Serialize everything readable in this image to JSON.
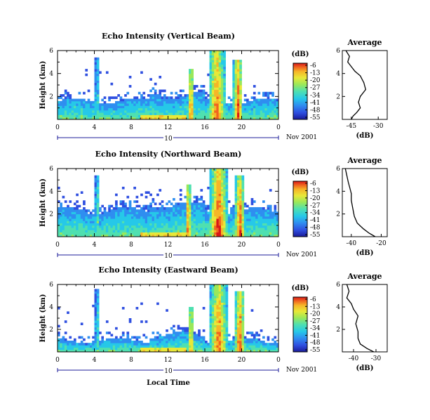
{
  "figure": {
    "xlabel": "Local Time",
    "date_label": "Nov 2001",
    "day_label": "10",
    "colorbar_unit": "(dB)",
    "colorbar_ticks": [
      "-6",
      "-13",
      "-20",
      "-27",
      "-34",
      "-41",
      "-48",
      "-55"
    ],
    "colors": {
      "scale": [
        "#1b1b9a",
        "#2f4fe0",
        "#2f8ef0",
        "#26c8e8",
        "#4fe0b0",
        "#9ae85a",
        "#e8e838",
        "#f6b628",
        "#f06420",
        "#d81818"
      ]
    }
  },
  "chart_data": [
    {
      "type": "heatmap",
      "title": "Echo Intensity (Vertical Beam)",
      "ylabel": "Height (km)",
      "x_ticks": [
        "0",
        "4",
        "8",
        "12",
        "16",
        "20",
        "0"
      ],
      "y_ticks": [
        "6",
        "4",
        "2"
      ],
      "xlim": [
        0,
        24
      ],
      "ylim": [
        0,
        6
      ],
      "profile": {
        "title": "Average",
        "xlabel": "(dB)",
        "x_ticks": [
          "-45",
          "-30"
        ],
        "y_ticks": [
          "6",
          "4",
          "2"
        ],
        "xlim": [
          -50,
          -25
        ],
        "x": [
          -45,
          -44,
          -42,
          -40,
          -41,
          -40,
          -37,
          -38,
          -40,
          -43,
          -45,
          -47,
          -46,
          -48
        ],
        "y": [
          0.0,
          0.3,
          0.6,
          1.0,
          1.5,
          2.0,
          2.6,
          3.2,
          3.8,
          4.2,
          4.6,
          5.0,
          5.5,
          6.0
        ]
      }
    },
    {
      "type": "heatmap",
      "title": "Echo Intensity (Northward Beam)",
      "ylabel": "Height (km)",
      "x_ticks": [
        "0",
        "4",
        "8",
        "12",
        "16",
        "20",
        "0"
      ],
      "y_ticks": [
        "6",
        "4",
        "2"
      ],
      "xlim": [
        0,
        24
      ],
      "ylim": [
        0,
        6
      ],
      "profile": {
        "title": "Average",
        "xlabel": "(dB)",
        "x_ticks": [
          "-40",
          "-20"
        ],
        "y_ticks": [
          "6",
          "4",
          "2"
        ],
        "xlim": [
          -46,
          -16
        ],
        "x": [
          -24,
          -28,
          -32,
          -36,
          -38,
          -39,
          -40,
          -40,
          -41,
          -42,
          -43,
          -44
        ],
        "y": [
          0.0,
          0.3,
          0.7,
          1.2,
          1.8,
          2.5,
          3.2,
          3.8,
          4.3,
          4.8,
          5.4,
          6.0
        ]
      }
    },
    {
      "type": "heatmap",
      "title": "Echo Intensity (Eastward Beam)",
      "ylabel": "Height (km)",
      "x_ticks": [
        "0",
        "4",
        "8",
        "12",
        "16",
        "20",
        "0"
      ],
      "y_ticks": [
        "6",
        "4",
        "2"
      ],
      "xlim": [
        0,
        24
      ],
      "ylim": [
        0,
        6
      ],
      "profile": {
        "title": "Average",
        "xlabel": "(dB)",
        "x_ticks": [
          "-40",
          "-30"
        ],
        "y_ticks": [
          "6",
          "4",
          "2"
        ],
        "xlim": [
          -45,
          -25
        ],
        "x": [
          -31,
          -34,
          -37,
          -38,
          -38,
          -39,
          -38,
          -40,
          -41,
          -43,
          -42,
          -43
        ],
        "y": [
          0.0,
          0.3,
          0.7,
          1.2,
          1.8,
          2.5,
          3.2,
          3.8,
          4.3,
          4.8,
          5.4,
          6.0
        ]
      }
    }
  ]
}
